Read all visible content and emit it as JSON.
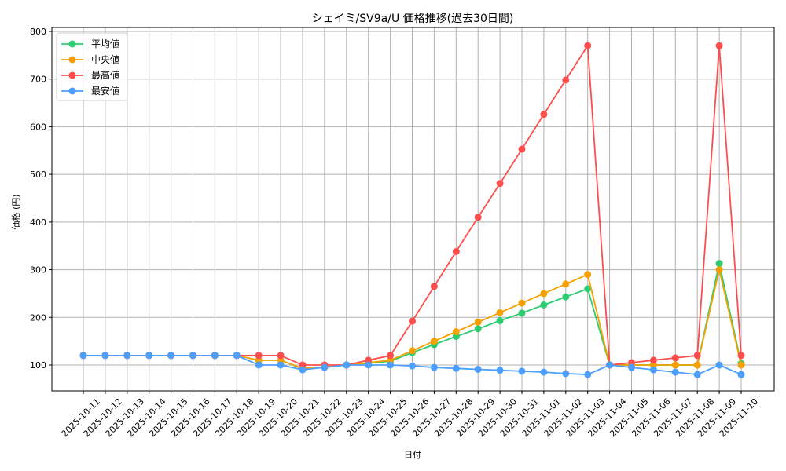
{
  "chart_data": {
    "type": "line",
    "title": "シェイミ/SV9a/U 価格推移(過去30日間)",
    "xlabel": "日付",
    "ylabel": "価格 (円)",
    "ylim": [
      45,
      805
    ],
    "yticks": [
      100,
      200,
      300,
      400,
      500,
      600,
      700,
      800
    ],
    "grid": true,
    "legend_position": "upper left",
    "categories": [
      "2025-10-11",
      "2025-10-12",
      "2025-10-13",
      "2025-10-14",
      "2025-10-15",
      "2025-10-16",
      "2025-10-17",
      "2025-10-18",
      "2025-10-19",
      "2025-10-20",
      "2025-10-21",
      "2025-10-22",
      "2025-10-23",
      "2025-10-24",
      "2025-10-25",
      "2025-10-26",
      "2025-10-27",
      "2025-10-28",
      "2025-10-29",
      "2025-10-30",
      "2025-10-31",
      "2025-11-01",
      "2025-11-02",
      "2025-11-03",
      "2025-11-04",
      "2025-11-05",
      "2025-11-06",
      "2025-11-07",
      "2025-11-08",
      "2025-11-09",
      "2025-11-10"
    ],
    "series": [
      {
        "name": "平均値",
        "color": "#2ecc71",
        "values": [
          120,
          120,
          120,
          120,
          120,
          120,
          120,
          120,
          110,
          110,
          92,
          96,
          100,
          104,
          108,
          126,
          143,
          160,
          176,
          193,
          209,
          226,
          243,
          260,
          100,
          100,
          100,
          100,
          100,
          313,
          103
        ]
      },
      {
        "name": "中央値",
        "color": "#f5a000",
        "values": [
          120,
          120,
          120,
          120,
          120,
          120,
          120,
          120,
          110,
          110,
          93,
          96,
          100,
          105,
          110,
          130,
          150,
          170,
          190,
          210,
          230,
          250,
          270,
          290,
          100,
          100,
          100,
          100,
          100,
          300,
          100
        ]
      },
      {
        "name": "最高値",
        "color": "#ff4d4d",
        "values": [
          120,
          120,
          120,
          120,
          120,
          120,
          120,
          120,
          120,
          120,
          100,
          100,
          100,
          110,
          120,
          192,
          265,
          338,
          410,
          481,
          553,
          626,
          698,
          770,
          100,
          105,
          110,
          115,
          120,
          770,
          120
        ]
      },
      {
        "name": "最安値",
        "color": "#4d9fff",
        "values": [
          120,
          120,
          120,
          120,
          120,
          120,
          120,
          120,
          100,
          100,
          90,
          95,
          100,
          100,
          100,
          98,
          95,
          93,
          91,
          89,
          87,
          85,
          82,
          80,
          100,
          95,
          90,
          85,
          80,
          100,
          80
        ]
      }
    ]
  }
}
